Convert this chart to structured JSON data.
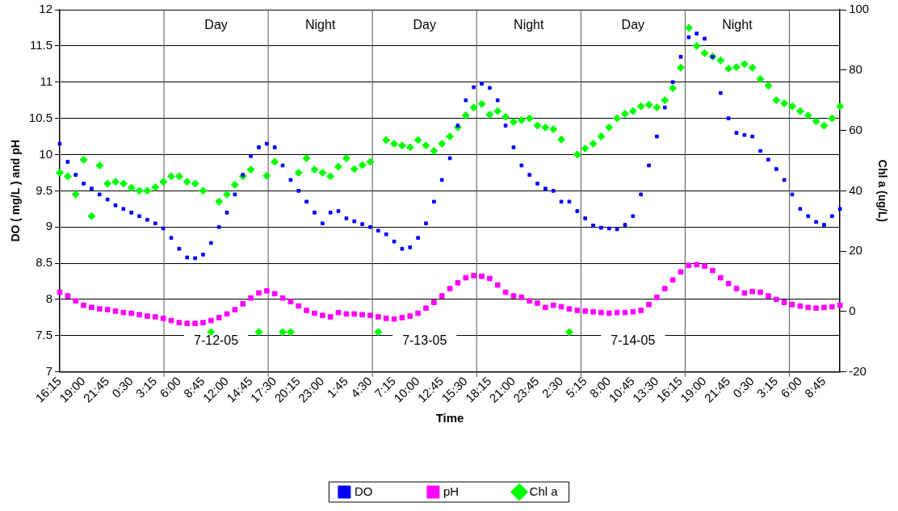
{
  "chart_data": {
    "type": "scatter",
    "xlabel": "Time",
    "ylabel": "DO ( mg/L ) and pH",
    "y2label": "Chl a (ug/L)",
    "categories": [
      "16:15",
      null,
      null,
      "19:00",
      null,
      null,
      "21:45",
      null,
      null,
      "0:30",
      null,
      null,
      "3:15",
      null,
      null,
      "6:00",
      null,
      null,
      "8:45",
      null,
      null,
      "12:00",
      null,
      null,
      "14:45",
      null,
      null,
      "17:30",
      null,
      null,
      "20:15",
      null,
      null,
      "23:00",
      null,
      null,
      "1:45",
      null,
      null,
      "4:30",
      null,
      null,
      "7:15",
      null,
      null,
      "10:00",
      null,
      null,
      "12:45",
      null,
      null,
      "15:30",
      null,
      null,
      "18:15",
      null,
      null,
      "21:00",
      null,
      null,
      "23:45",
      null,
      null,
      "2:30",
      null,
      null,
      "5:15",
      null,
      null,
      "8:00",
      null,
      null,
      "10:45",
      null,
      null,
      "13:30",
      null,
      null,
      "16:15",
      null,
      null,
      "19:00",
      null,
      null,
      "21:45",
      null,
      null,
      "0:30",
      null,
      null,
      "3:15",
      null,
      null,
      "6:00",
      null,
      null,
      "8:45",
      null,
      null
    ],
    "ylim": [
      7,
      12
    ],
    "yticks": [
      7,
      7.5,
      8,
      8.5,
      9,
      9.5,
      10,
      10.5,
      11,
      11.5,
      12
    ],
    "y2lim": [
      -20,
      100
    ],
    "y2ticks": [
      -20,
      0,
      20,
      40,
      60,
      80,
      100
    ],
    "grid": "y",
    "legend": "bottom",
    "annotations": [
      "Day",
      "Night",
      "Day",
      "Night",
      "Day",
      "Night",
      "7-12-05",
      "7-13-05",
      "7-14-05"
    ],
    "series": [
      {
        "name": "DO",
        "color": "#0000ff",
        "marker": "square",
        "values": [
          10.15,
          9.9,
          9.72,
          9.6,
          9.53,
          9.45,
          9.38,
          9.3,
          9.25,
          9.2,
          9.15,
          9.1,
          9.05,
          8.98,
          8.85,
          8.7,
          8.58,
          8.57,
          8.62,
          8.78,
          9.0,
          9.2,
          9.45,
          9.72,
          9.98,
          10.1,
          10.15,
          10.1,
          9.85,
          9.65,
          9.5,
          9.35,
          9.2,
          9.05,
          9.2,
          9.22,
          9.12,
          9.08,
          9.04,
          9.0,
          8.95,
          8.9,
          8.8,
          8.7,
          8.72,
          8.85,
          9.05,
          9.35,
          9.65,
          9.95,
          10.4,
          10.75,
          10.93,
          10.98,
          10.92,
          10.75,
          10.4,
          10.1,
          9.85,
          9.72,
          9.6,
          9.53,
          9.5,
          9.35,
          9.35,
          9.22,
          9.12,
          9.02,
          8.99,
          8.98,
          8.97,
          9.03,
          9.15,
          9.45,
          9.85,
          10.25,
          10.65,
          11.0,
          11.35,
          11.62,
          11.67,
          11.6,
          11.35,
          10.85,
          10.5,
          10.3,
          10.27,
          10.25,
          10.05,
          9.93,
          9.8,
          9.65,
          9.45,
          9.25,
          9.15,
          9.07,
          9.03,
          9.15,
          9.25
        ]
      },
      {
        "name": "pH",
        "color": "#ff00ff",
        "marker": "square",
        "values": [
          8.1,
          8.05,
          7.98,
          7.92,
          7.89,
          7.87,
          7.86,
          7.84,
          7.82,
          7.81,
          7.79,
          7.77,
          7.76,
          7.74,
          7.71,
          7.68,
          7.67,
          7.67,
          7.68,
          7.71,
          7.75,
          7.8,
          7.86,
          7.94,
          8.02,
          8.09,
          8.12,
          8.08,
          8.02,
          7.97,
          7.91,
          7.85,
          7.81,
          7.78,
          7.76,
          7.82,
          7.8,
          7.8,
          7.79,
          7.78,
          7.76,
          7.74,
          7.73,
          7.75,
          7.77,
          7.81,
          7.88,
          7.96,
          8.05,
          8.15,
          8.23,
          8.3,
          8.33,
          8.32,
          8.29,
          8.2,
          8.1,
          8.05,
          8.03,
          7.98,
          7.95,
          7.89,
          7.92,
          7.9,
          7.87,
          7.85,
          7.84,
          7.83,
          7.82,
          7.81,
          7.82,
          7.82,
          7.83,
          7.85,
          7.93,
          8.03,
          8.15,
          8.27,
          8.38,
          8.47,
          8.48,
          8.46,
          8.4,
          8.3,
          8.22,
          8.15,
          8.09,
          8.11,
          8.1,
          8.05,
          8.0,
          7.96,
          7.93,
          7.91,
          7.89,
          7.88,
          7.89,
          7.9,
          7.92
        ]
      },
      {
        "name": "Chl a",
        "color": "#00ff00",
        "marker": "diamond",
        "axis": "y2",
        "values": [
          46,
          44.8,
          38.8,
          50.3,
          31.6,
          48.4,
          42.4,
          43,
          42.4,
          41,
          40,
          40,
          41.2,
          43,
          44.8,
          44.8,
          43,
          42.4,
          40,
          -6.8,
          36.4,
          38.8,
          42,
          44.8,
          47,
          -6.8,
          45,
          49.6,
          -6.8,
          -6.8,
          46,
          50.8,
          47,
          46,
          44.8,
          48,
          50.8,
          47.2,
          48.5,
          49.6,
          -6.8,
          56.8,
          55.6,
          55,
          54.4,
          56.8,
          55,
          53.2,
          55.6,
          58,
          61,
          65,
          67.6,
          68.8,
          65.2,
          66.4,
          64.5,
          62.8,
          63.4,
          64,
          61.6,
          61,
          60.4,
          57,
          -6.8,
          52,
          54,
          55.6,
          58,
          61,
          64,
          65.5,
          66.4,
          68,
          68.5,
          67.6,
          70,
          74,
          80.8,
          94,
          88,
          85.6,
          84.5,
          83.2,
          80.5,
          81,
          82,
          80.8,
          77,
          74.8,
          70,
          69,
          68,
          66.4,
          65,
          63,
          61.6,
          64,
          68
        ]
      }
    ]
  }
}
